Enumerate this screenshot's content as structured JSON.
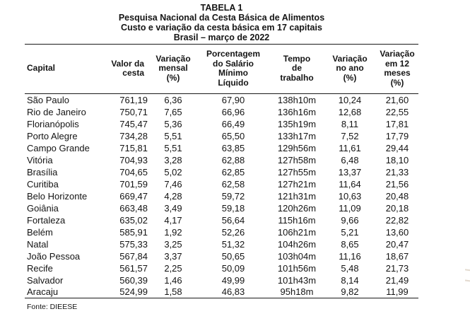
{
  "title": {
    "line1": "TABELA 1",
    "line2": "Pesquisa Nacional da Cesta Básica de Alimentos",
    "line3": "Custo e variação da cesta básica em 17 capitais",
    "line4": "Brasil – março de 2022"
  },
  "table": {
    "columns": [
      {
        "key": "capital",
        "label": "Capital"
      },
      {
        "key": "valor",
        "label": "Valor da\ncesta"
      },
      {
        "key": "mensal",
        "label": "Variação\nmensal\n(%)"
      },
      {
        "key": "porcentagem",
        "label": "Porcentagem\ndo Salário\nMínimo\nLíquido"
      },
      {
        "key": "tempo",
        "label": "Tempo\nde\ntrabalho"
      },
      {
        "key": "ano",
        "label": "Variação\nno ano\n(%)"
      },
      {
        "key": "meses",
        "label": "Variação\nem 12\nmeses\n(%)"
      }
    ],
    "rows": [
      {
        "capital": "São Paulo",
        "valor": "761,19",
        "mensal": "6,36",
        "porcentagem": "67,90",
        "tempo": "138h10m",
        "ano": "10,24",
        "meses": "21,60"
      },
      {
        "capital": "Rio de Janeiro",
        "valor": "750,71",
        "mensal": "7,65",
        "porcentagem": "66,96",
        "tempo": "136h16m",
        "ano": "12,68",
        "meses": "22,55"
      },
      {
        "capital": "Florianópolis",
        "valor": "745,47",
        "mensal": "5,36",
        "porcentagem": "66,49",
        "tempo": "135h19m",
        "ano": "8,11",
        "meses": "17,81"
      },
      {
        "capital": "Porto Alegre",
        "valor": "734,28",
        "mensal": "5,51",
        "porcentagem": "65,50",
        "tempo": "133h17m",
        "ano": "7,52",
        "meses": "17,79"
      },
      {
        "capital": "Campo Grande",
        "valor": "715,81",
        "mensal": "5,51",
        "porcentagem": "63,85",
        "tempo": "129h56m",
        "ano": "11,61",
        "meses": "29,44"
      },
      {
        "capital": "Vitória",
        "valor": "704,93",
        "mensal": "3,28",
        "porcentagem": "62,88",
        "tempo": "127h58m",
        "ano": "6,48",
        "meses": "18,10"
      },
      {
        "capital": "Brasília",
        "valor": "704,65",
        "mensal": "5,02",
        "porcentagem": "62,85",
        "tempo": "127h55m",
        "ano": "13,37",
        "meses": "21,33"
      },
      {
        "capital": "Curitiba",
        "valor": "701,59",
        "mensal": "7,46",
        "porcentagem": "62,58",
        "tempo": "127h21m",
        "ano": "11,64",
        "meses": "21,56"
      },
      {
        "capital": "Belo Horizonte",
        "valor": "669,47",
        "mensal": "4,28",
        "porcentagem": "59,72",
        "tempo": "121h31m",
        "ano": "10,63",
        "meses": "20,48"
      },
      {
        "capital": "Goiânia",
        "valor": "663,48",
        "mensal": "3,49",
        "porcentagem": "59,18",
        "tempo": "120h26m",
        "ano": "11,09",
        "meses": "20,18"
      },
      {
        "capital": "Fortaleza",
        "valor": "635,02",
        "mensal": "4,17",
        "porcentagem": "56,64",
        "tempo": "115h16m",
        "ano": "9,66",
        "meses": "22,82"
      },
      {
        "capital": "Belém",
        "valor": "585,91",
        "mensal": "1,92",
        "porcentagem": "52,26",
        "tempo": "106h21m",
        "ano": "5,21",
        "meses": "13,60"
      },
      {
        "capital": "Natal",
        "valor": "575,33",
        "mensal": "3,25",
        "porcentagem": "51,32",
        "tempo": "104h26m",
        "ano": "8,65",
        "meses": "20,47"
      },
      {
        "capital": "João Pessoa",
        "valor": "567,84",
        "mensal": "3,37",
        "porcentagem": "50,65",
        "tempo": "103h04m",
        "ano": "11,16",
        "meses": "18,67"
      },
      {
        "capital": "Recife",
        "valor": "561,57",
        "mensal": "2,25",
        "porcentagem": "50,09",
        "tempo": "101h56m",
        "ano": "5,48",
        "meses": "21,73"
      },
      {
        "capital": "Salvador",
        "valor": "560,39",
        "mensal": "1,46",
        "porcentagem": "49,99",
        "tempo": "101h43m",
        "ano": "8,14",
        "meses": "21,49"
      },
      {
        "capital": "Aracaju",
        "valor": "524,99",
        "mensal": "1,58",
        "porcentagem": "46,83",
        "tempo": "95h18m",
        "ano": "9,82",
        "meses": "11,99"
      }
    ]
  },
  "footer": {
    "source": "Fonte: DIEESE"
  }
}
